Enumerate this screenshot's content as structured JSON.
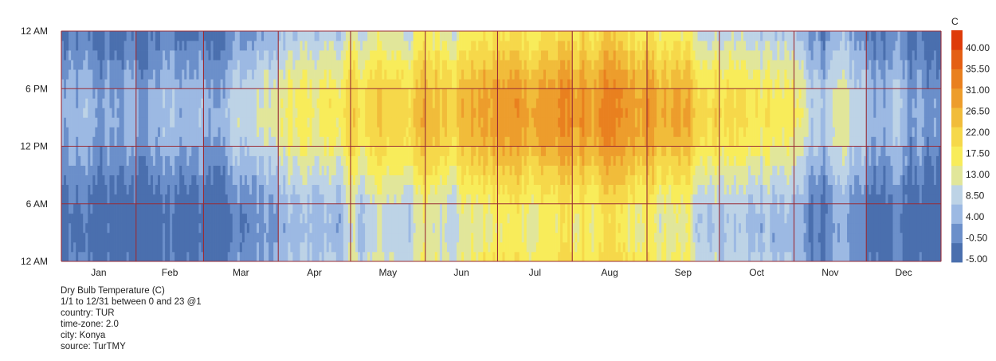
{
  "chart_data": {
    "type": "heatmap",
    "title": "Dry Bulb Temperature (C)",
    "x_axis": {
      "type": "day-of-year",
      "range": [
        "1/1",
        "12/31"
      ],
      "month_labels": [
        "Jan",
        "Feb",
        "Mar",
        "Apr",
        "May",
        "Jun",
        "Jul",
        "Aug",
        "Sep",
        "Oct",
        "Nov",
        "Dec"
      ]
    },
    "y_axis": {
      "range_hours": [
        0,
        23
      ],
      "tick_labels": [
        "12 AM",
        "6 PM",
        "12 PM",
        "6 AM",
        "12 AM"
      ]
    },
    "legend": {
      "title": "C",
      "placement": "right",
      "tick_labels": [
        "40.00",
        "35.50",
        "31.00",
        "26.50",
        "22.00",
        "17.50",
        "13.00",
        "8.50",
        "4.00",
        "-0.50",
        "-5.00"
      ],
      "min": -5.0,
      "max": 44.5,
      "colors": [
        "#4a6fae",
        "#6b8fca",
        "#9cb9e3",
        "#bdd3e6",
        "#e1e69a",
        "#f8ec5a",
        "#f6d84a",
        "#f1bc3a",
        "#ed9d2c",
        "#e9801f",
        "#e45f14",
        "#de3b0a"
      ]
    },
    "monthly_mean_temperature_c": [
      -1.0,
      0.5,
      4.5,
      11.0,
      16.0,
      21.0,
      24.0,
      23.5,
      19.0,
      12.5,
      4.5,
      0.5
    ],
    "monthly_daily_range_c": [
      8,
      9,
      10,
      12,
      13,
      14,
      14,
      14,
      14,
      13,
      10,
      8
    ],
    "hour_of_max_temperature": 15
  },
  "info": {
    "lines": [
      "Dry Bulb Temperature (C)",
      "1/1 to 12/31 between 0 and 23 @1",
      "country: TUR",
      "time-zone: 2.0",
      "city: Konya",
      "source: TurTMY"
    ]
  }
}
